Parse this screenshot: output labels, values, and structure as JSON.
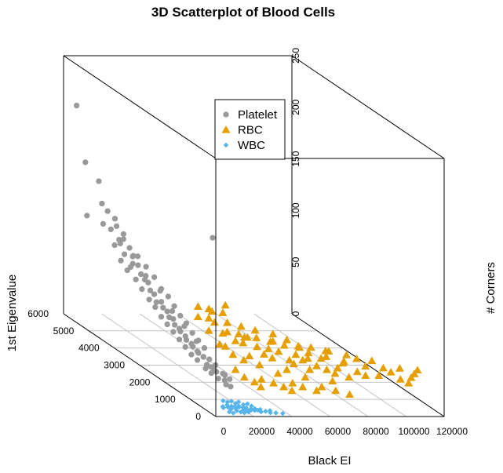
{
  "chart_data": {
    "type": "scatter",
    "title": "3D Scatterplot of Blood Cells",
    "xlabel": "Black EI",
    "ylabel": "1st Eigenvalue",
    "zlabel": "# Corners",
    "xlim": [
      0,
      120000
    ],
    "ylim": [
      0,
      6000
    ],
    "zlim": [
      0,
      250
    ],
    "x_ticks": [
      "0",
      "20000",
      "40000",
      "60000",
      "80000",
      "100000",
      "120000"
    ],
    "y_ticks": [
      "0",
      "1000",
      "2000",
      "3000",
      "4000",
      "5000",
      "6000"
    ],
    "z_ticks": [
      "0",
      "50",
      "100",
      "150",
      "200",
      "250"
    ],
    "grid": true,
    "legend_position": "top-center",
    "series": [
      {
        "name": "Platelet",
        "marker": "octagon",
        "color": "#999999",
        "points": [
          [
            200,
            5500,
            210
          ],
          [
            800,
            5200,
            160
          ],
          [
            300,
            5100,
            110
          ],
          [
            1200,
            4700,
            150
          ],
          [
            1500,
            4600,
            130
          ],
          [
            800,
            4500,
            112
          ],
          [
            1800,
            4400,
            126
          ],
          [
            2200,
            4300,
            110
          ],
          [
            3000,
            4200,
            122
          ],
          [
            1500,
            4100,
            98
          ],
          [
            2500,
            4000,
            105
          ],
          [
            3500,
            3900,
            112
          ],
          [
            800,
            3800,
            88
          ],
          [
            2000,
            3750,
            95
          ],
          [
            4000,
            3700,
            102
          ],
          [
            1500,
            3600,
            82
          ],
          [
            3000,
            3500,
            90
          ],
          [
            5000,
            3450,
            98
          ],
          [
            2000,
            3300,
            78
          ],
          [
            4000,
            3250,
            84
          ],
          [
            6000,
            3200,
            92
          ],
          [
            2500,
            3100,
            72
          ],
          [
            4500,
            3000,
            80
          ],
          [
            7000,
            2950,
            86
          ],
          [
            3000,
            2850,
            66
          ],
          [
            5000,
            2800,
            72
          ],
          [
            8000,
            2750,
            78
          ],
          [
            3500,
            2650,
            62
          ],
          [
            6000,
            2600,
            68
          ],
          [
            9000,
            2550,
            74
          ],
          [
            4000,
            2450,
            56
          ],
          [
            6500,
            2400,
            62
          ],
          [
            9500,
            2350,
            68
          ],
          [
            4500,
            2250,
            52
          ],
          [
            7000,
            2200,
            58
          ],
          [
            10000,
            2150,
            62
          ],
          [
            5000,
            2050,
            48
          ],
          [
            7500,
            2000,
            52
          ],
          [
            10500,
            1950,
            58
          ],
          [
            5500,
            1850,
            44
          ],
          [
            8000,
            1800,
            48
          ],
          [
            11000,
            1750,
            52
          ],
          [
            6000,
            1650,
            40
          ],
          [
            8500,
            1600,
            44
          ],
          [
            11500,
            1550,
            48
          ],
          [
            6500,
            1450,
            36
          ],
          [
            9000,
            1400,
            40
          ],
          [
            12000,
            1350,
            44
          ],
          [
            7000,
            1250,
            34
          ],
          [
            9500,
            1200,
            38
          ],
          [
            10000,
            1100,
            32
          ],
          [
            8000,
            1000,
            30
          ],
          [
            12500,
            950,
            34
          ],
          [
            9000,
            850,
            28
          ],
          [
            11000,
            800,
            30
          ],
          [
            13000,
            700,
            30
          ],
          [
            10000,
            650,
            26
          ],
          [
            12000,
            550,
            26
          ],
          [
            14000,
            500,
            28
          ],
          [
            11000,
            420,
            24
          ],
          [
            2600,
            3550,
            86
          ],
          [
            3800,
            3350,
            91
          ],
          [
            5200,
            3150,
            84
          ],
          [
            4200,
            2900,
            74
          ],
          [
            6800,
            2700,
            77
          ],
          [
            5600,
            2500,
            64
          ],
          [
            7800,
            2300,
            64
          ],
          [
            6400,
            2100,
            54
          ],
          [
            8800,
            1900,
            56
          ],
          [
            7200,
            1700,
            46
          ],
          [
            9800,
            1500,
            48
          ],
          [
            8200,
            1300,
            40
          ],
          [
            10600,
            1050,
            38
          ],
          [
            9600,
            900,
            33
          ],
          [
            12800,
            600,
            30
          ],
          [
            11800,
            300,
            24
          ],
          [
            1200,
            4000,
            118
          ],
          [
            2800,
            3850,
            108
          ],
          [
            4600,
            3600,
            96
          ],
          [
            3400,
            3050,
            82
          ],
          [
            4800,
            2700,
            66
          ],
          [
            6200,
            2300,
            58
          ],
          [
            7400,
            1950,
            50
          ],
          [
            8600,
            1550,
            42
          ],
          [
            10200,
            1250,
            37
          ],
          [
            11200,
            900,
            30
          ],
          [
            5800,
            4200,
            98
          ],
          [
            7000,
            3800,
            92
          ],
          [
            25000,
            2000,
            140
          ]
        ]
      },
      {
        "name": "RBC",
        "marker": "triangle",
        "color": "#E69F00",
        "points": [
          [
            22000,
            1500,
            45
          ],
          [
            25000,
            1200,
            40
          ],
          [
            28000,
            1000,
            38
          ],
          [
            30000,
            1800,
            52
          ],
          [
            33000,
            1400,
            48
          ],
          [
            35000,
            900,
            35
          ],
          [
            38000,
            1600,
            50
          ],
          [
            40000,
            1100,
            42
          ],
          [
            42000,
            700,
            30
          ],
          [
            45000,
            1300,
            44
          ],
          [
            48000,
            800,
            32
          ],
          [
            50000,
            1500,
            48
          ],
          [
            52000,
            1000,
            38
          ],
          [
            55000,
            600,
            28
          ],
          [
            58000,
            1200,
            40
          ],
          [
            60000,
            800,
            32
          ],
          [
            62000,
            1400,
            45
          ],
          [
            65000,
            900,
            34
          ],
          [
            68000,
            500,
            26
          ],
          [
            70000,
            1100,
            38
          ],
          [
            72000,
            700,
            30
          ],
          [
            75000,
            1300,
            42
          ],
          [
            78000,
            600,
            28
          ],
          [
            80000,
            1000,
            35
          ],
          [
            85000,
            800,
            30
          ],
          [
            90000,
            1200,
            36
          ],
          [
            95000,
            700,
            28
          ],
          [
            100000,
            900,
            32
          ],
          [
            105000,
            600,
            26
          ],
          [
            110000,
            1000,
            30
          ],
          [
            115000,
            800,
            28
          ],
          [
            20000,
            2200,
            60
          ],
          [
            24000,
            2500,
            65
          ],
          [
            26000,
            2000,
            58
          ],
          [
            30000,
            2400,
            62
          ],
          [
            34000,
            2100,
            56
          ],
          [
            36000,
            1800,
            50
          ],
          [
            40000,
            2000,
            54
          ],
          [
            44000,
            1700,
            48
          ],
          [
            46000,
            1900,
            52
          ],
          [
            50000,
            1600,
            46
          ],
          [
            54000,
            1800,
            50
          ],
          [
            56000,
            1500,
            44
          ],
          [
            60000,
            1700,
            46
          ],
          [
            64000,
            1500,
            42
          ],
          [
            66000,
            1300,
            40
          ],
          [
            70000,
            1500,
            42
          ],
          [
            74000,
            1200,
            38
          ],
          [
            78000,
            1400,
            40
          ],
          [
            82000,
            1100,
            35
          ],
          [
            86000,
            1300,
            38
          ],
          [
            92000,
            1000,
            32
          ],
          [
            98000,
            1200,
            34
          ],
          [
            104000,
            900,
            28
          ],
          [
            112000,
            700,
            26
          ],
          [
            118000,
            900,
            30
          ],
          [
            21000,
            800,
            32
          ],
          [
            23000,
            600,
            28
          ],
          [
            27000,
            500,
            25
          ],
          [
            29000,
            400,
            22
          ],
          [
            32000,
            600,
            26
          ],
          [
            37000,
            500,
            24
          ],
          [
            41000,
            400,
            22
          ],
          [
            44000,
            300,
            20
          ],
          [
            47000,
            500,
            24
          ],
          [
            51000,
            400,
            22
          ],
          [
            57000,
            300,
            20
          ],
          [
            61000,
            400,
            22
          ],
          [
            67000,
            300,
            20
          ],
          [
            73000,
            200,
            18
          ],
          [
            19000,
            1700,
            55
          ],
          [
            21000,
            1200,
            48
          ],
          [
            23000,
            2000,
            62
          ],
          [
            25000,
            1600,
            54
          ],
          [
            27000,
            2300,
            66
          ],
          [
            29000,
            1400,
            50
          ],
          [
            31000,
            1000,
            42
          ],
          [
            33000,
            2200,
            64
          ],
          [
            35000,
            1500,
            52
          ],
          [
            37000,
            2400,
            68
          ],
          [
            39000,
            1300,
            46
          ],
          [
            43000,
            1000,
            40
          ],
          [
            49000,
            1200,
            43
          ],
          [
            53000,
            900,
            36
          ],
          [
            59000,
            1000,
            38
          ],
          [
            63000,
            1100,
            38
          ],
          [
            69000,
            800,
            32
          ],
          [
            76000,
            900,
            32
          ],
          [
            88000,
            700,
            28
          ],
          [
            108000,
            500,
            24
          ]
        ]
      },
      {
        "name": "WBC",
        "marker": "diamond",
        "color": "#56B4E9",
        "points": [
          [
            5000,
            100,
            8
          ],
          [
            6000,
            150,
            6
          ],
          [
            7000,
            80,
            10
          ],
          [
            8000,
            120,
            7
          ],
          [
            9000,
            60,
            9
          ],
          [
            10000,
            140,
            5
          ],
          [
            11000,
            90,
            8
          ],
          [
            12000,
            110,
            6
          ],
          [
            13000,
            70,
            9
          ],
          [
            14000,
            130,
            7
          ],
          [
            15000,
            50,
            8
          ],
          [
            16000,
            100,
            5
          ],
          [
            17000,
            80,
            7
          ],
          [
            18000,
            120,
            4
          ],
          [
            19000,
            60,
            6
          ],
          [
            20000,
            90,
            5
          ],
          [
            21000,
            40,
            7
          ],
          [
            22000,
            110,
            4
          ],
          [
            23000,
            70,
            5
          ],
          [
            24000,
            50,
            6
          ],
          [
            25000,
            90,
            3
          ],
          [
            27000,
            60,
            4
          ],
          [
            29000,
            40,
            5
          ],
          [
            32000,
            30,
            3
          ],
          [
            6500,
            200,
            12
          ],
          [
            8500,
            180,
            11
          ],
          [
            10500,
            170,
            12
          ],
          [
            12500,
            160,
            10
          ],
          [
            14500,
            190,
            11
          ],
          [
            16500,
            150,
            9
          ],
          [
            18500,
            140,
            10
          ],
          [
            20500,
            130,
            8
          ],
          [
            7500,
            30,
            4
          ],
          [
            9500,
            20,
            3
          ],
          [
            11500,
            40,
            5
          ],
          [
            13500,
            25,
            4
          ],
          [
            15500,
            35,
            3
          ],
          [
            17500,
            20,
            4
          ],
          [
            30000,
            100,
            2
          ],
          [
            36000,
            60,
            2
          ]
        ]
      }
    ]
  }
}
